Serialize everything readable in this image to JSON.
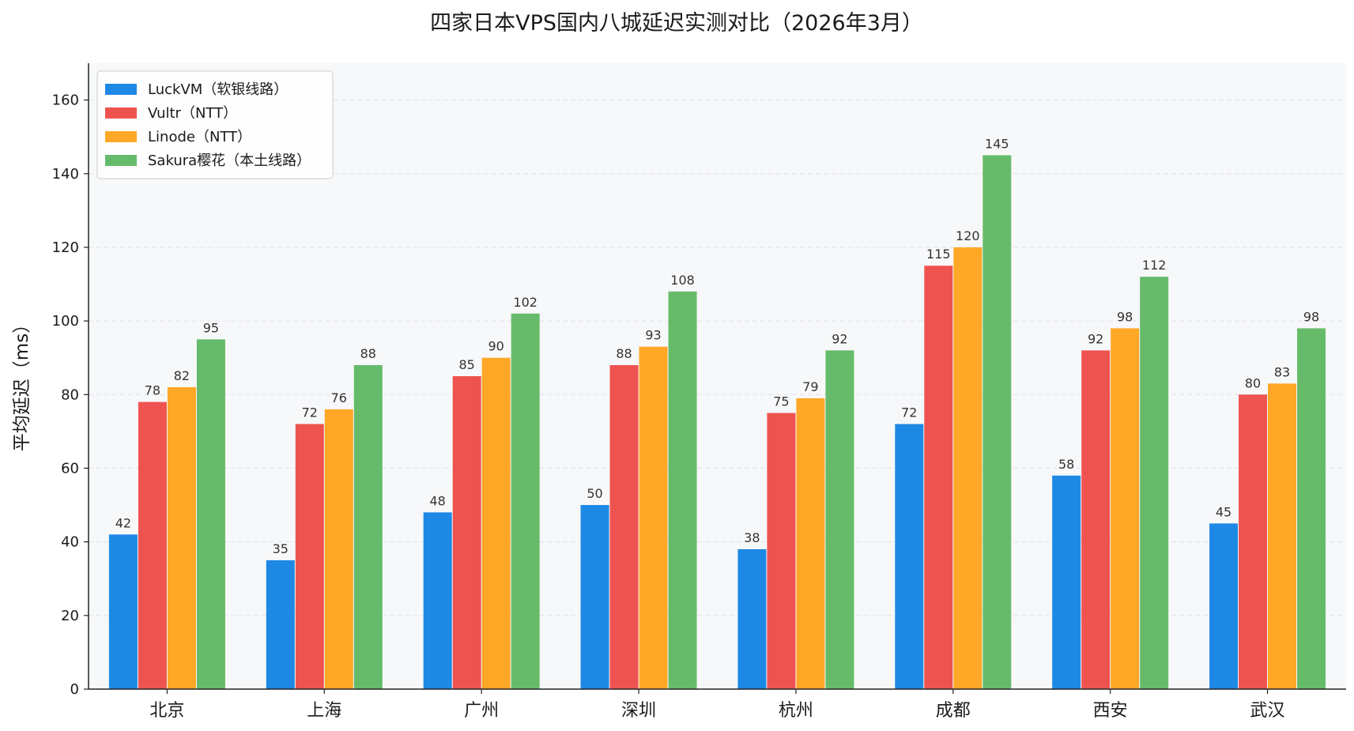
{
  "chart_data": {
    "type": "bar",
    "title": "四家日本VPS国内八城延迟实测对比（2026年3月）",
    "xlabel": "",
    "ylabel": "平均延迟（ms）",
    "ylim": [
      0,
      170
    ],
    "yticks": [
      0,
      20,
      40,
      60,
      80,
      100,
      120,
      140,
      160
    ],
    "grid": true,
    "legend_position": "top-left",
    "categories": [
      "北京",
      "上海",
      "广州",
      "深圳",
      "杭州",
      "成都",
      "西安",
      "武汉"
    ],
    "series": [
      {
        "name": "LuckVM（软银线路）",
        "color": "#1e88e5",
        "values": [
          42,
          35,
          48,
          50,
          38,
          72,
          58,
          45
        ]
      },
      {
        "name": "Vultr（NTT）",
        "color": "#ef5350",
        "values": [
          78,
          72,
          85,
          88,
          75,
          115,
          92,
          80
        ]
      },
      {
        "name": "Linode（NTT）",
        "color": "#ffa726",
        "values": [
          82,
          76,
          90,
          93,
          79,
          120,
          98,
          83
        ]
      },
      {
        "name": "Sakura樱花（本土线路）",
        "color": "#66bb6a",
        "values": [
          95,
          88,
          102,
          108,
          92,
          145,
          112,
          98
        ]
      }
    ],
    "plot_background": "#f7f8fa"
  }
}
